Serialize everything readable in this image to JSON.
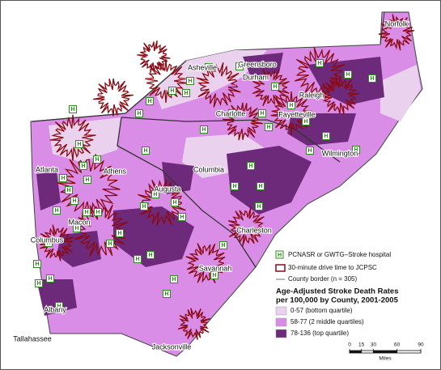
{
  "map": {
    "hospital_symbol": "H",
    "cities": [
      "Norfolk",
      "Greensboro",
      "Durham",
      "Asheville",
      "Raleigh",
      "Charlotte",
      "Fayetteville",
      "Wilmington",
      "Columbia",
      "Atlanta",
      "Athens",
      "Augusta",
      "Macon",
      "Charleston",
      "Columbus",
      "Savannah",
      "Albany",
      "Tallahassee",
      "Jacksonville"
    ],
    "legend": {
      "hospital": "PCNASR or GWTG–Stroke hospital",
      "drive_time": "30-minute drive time to JCPSC",
      "county_border": "County border (n = 305)",
      "title_lines": [
        "Age-Adjusted Stroke Death Rates",
        "per 100,000 by County, 2001-2005"
      ],
      "classes": [
        {
          "label": "0-57 (bottom quartile)",
          "color": "#ead2ef"
        },
        {
          "label": "58-77 (2 middle quartiles)",
          "color": "#d98de6"
        },
        {
          "label": "78-136 (top quartile)",
          "color": "#6e2a7a"
        }
      ]
    },
    "scale": {
      "ticks": [
        0,
        15,
        30,
        60,
        90
      ],
      "unit": "Miles"
    }
  }
}
